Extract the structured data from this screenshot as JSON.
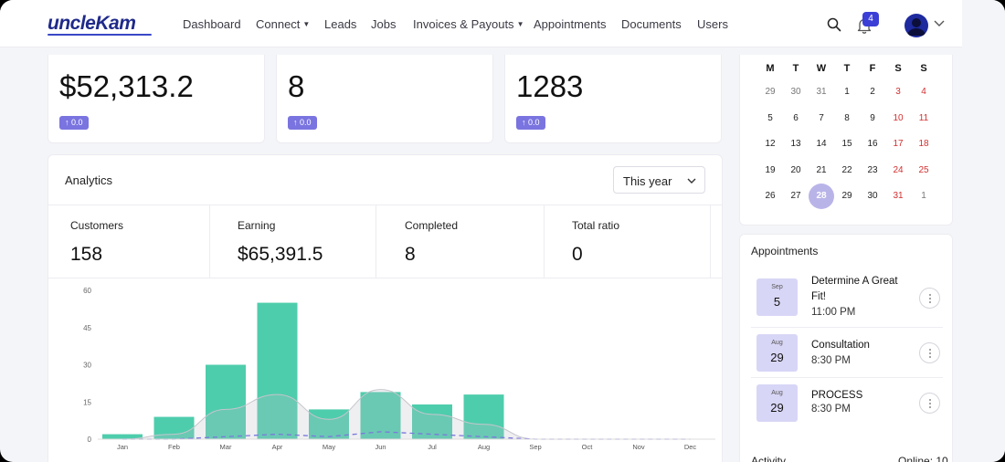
{
  "brand": {
    "logo": "uncleKam"
  },
  "nav": {
    "items": [
      {
        "label": "Dashboard",
        "dropdown": false
      },
      {
        "label": "Connect",
        "dropdown": true
      },
      {
        "label": "Leads",
        "dropdown": false
      },
      {
        "label": "Jobs",
        "dropdown": false
      },
      {
        "label": "Invoices & Payouts",
        "dropdown": true
      },
      {
        "label": "Appointments",
        "dropdown": false
      },
      {
        "label": "Documents",
        "dropdown": false
      },
      {
        "label": "Users",
        "dropdown": false
      }
    ],
    "notification_count": "4",
    "icons": [
      "search-icon",
      "bell-icon",
      "user-avatar-icon",
      "chevron-down-icon"
    ]
  },
  "stats": [
    {
      "value": "$52,313.2",
      "change": "↑ 0.0"
    },
    {
      "value": "8",
      "change": "↑ 0.0"
    },
    {
      "value": "1283",
      "change": "↑ 0.0"
    }
  ],
  "analytics": {
    "title": "Analytics",
    "period": "This year",
    "metrics": [
      {
        "label": "Customers",
        "value": "158"
      },
      {
        "label": "Earning",
        "value": "$65,391.5"
      },
      {
        "label": "Completed",
        "value": "8"
      },
      {
        "label": "Total ratio",
        "value": "0"
      }
    ]
  },
  "chart_data": {
    "type": "bar",
    "categories": [
      "Jan",
      "Feb",
      "Mar",
      "Apr",
      "May",
      "Jun",
      "Jul",
      "Aug",
      "Sep",
      "Oct",
      "Nov",
      "Dec"
    ],
    "series": [
      {
        "values": [
          2,
          9,
          30,
          55,
          12,
          19,
          14,
          18,
          0,
          0,
          0,
          0
        ],
        "color": "#4ecdac",
        "kind": "bar"
      },
      {
        "values": [
          0,
          2,
          12,
          18,
          8,
          20,
          10,
          6,
          0,
          0,
          0,
          0
        ],
        "color": "#c5c5cc",
        "kind": "area"
      },
      {
        "values": [
          0,
          0,
          1,
          2,
          1,
          3,
          2,
          1,
          0,
          0,
          0,
          0
        ],
        "color": "#7b78dd",
        "kind": "dashed-line"
      }
    ],
    "yticks": [
      0,
      15,
      30,
      45,
      60
    ],
    "ylim": [
      0,
      60
    ],
    "grid": false
  },
  "calendar": {
    "weekdays": [
      "M",
      "T",
      "W",
      "T",
      "F",
      "S",
      "S"
    ],
    "weeks": [
      [
        {
          "d": "29",
          "m": true
        },
        {
          "d": "30",
          "m": true
        },
        {
          "d": "31",
          "m": true
        },
        {
          "d": "1"
        },
        {
          "d": "2"
        },
        {
          "d": "3",
          "w": true
        },
        {
          "d": "4",
          "w": true
        }
      ],
      [
        {
          "d": "5"
        },
        {
          "d": "6"
        },
        {
          "d": "7"
        },
        {
          "d": "8"
        },
        {
          "d": "9"
        },
        {
          "d": "10",
          "w": true
        },
        {
          "d": "11",
          "w": true
        }
      ],
      [
        {
          "d": "12"
        },
        {
          "d": "13"
        },
        {
          "d": "14"
        },
        {
          "d": "15"
        },
        {
          "d": "16"
        },
        {
          "d": "17",
          "w": true
        },
        {
          "d": "18",
          "w": true
        }
      ],
      [
        {
          "d": "19"
        },
        {
          "d": "20"
        },
        {
          "d": "21"
        },
        {
          "d": "22"
        },
        {
          "d": "23"
        },
        {
          "d": "24",
          "w": true
        },
        {
          "d": "25",
          "w": true
        }
      ],
      [
        {
          "d": "26"
        },
        {
          "d": "27"
        },
        {
          "d": "28",
          "s": true
        },
        {
          "d": "29"
        },
        {
          "d": "30"
        },
        {
          "d": "31",
          "w": true
        },
        {
          "d": "1",
          "m": true
        }
      ]
    ]
  },
  "appointments": {
    "title": "Appointments",
    "items": [
      {
        "month": "Sep",
        "day": "5",
        "name": "Determine A Great Fit!",
        "time": "11:00 PM"
      },
      {
        "month": "Aug",
        "day": "29",
        "name": "Consultation",
        "time": "8:30 PM"
      },
      {
        "month": "Aug",
        "day": "29",
        "name": "PROCESS",
        "time": "8:30 PM"
      }
    ]
  },
  "activity": {
    "label": "Activity",
    "online": "Online: 10"
  }
}
